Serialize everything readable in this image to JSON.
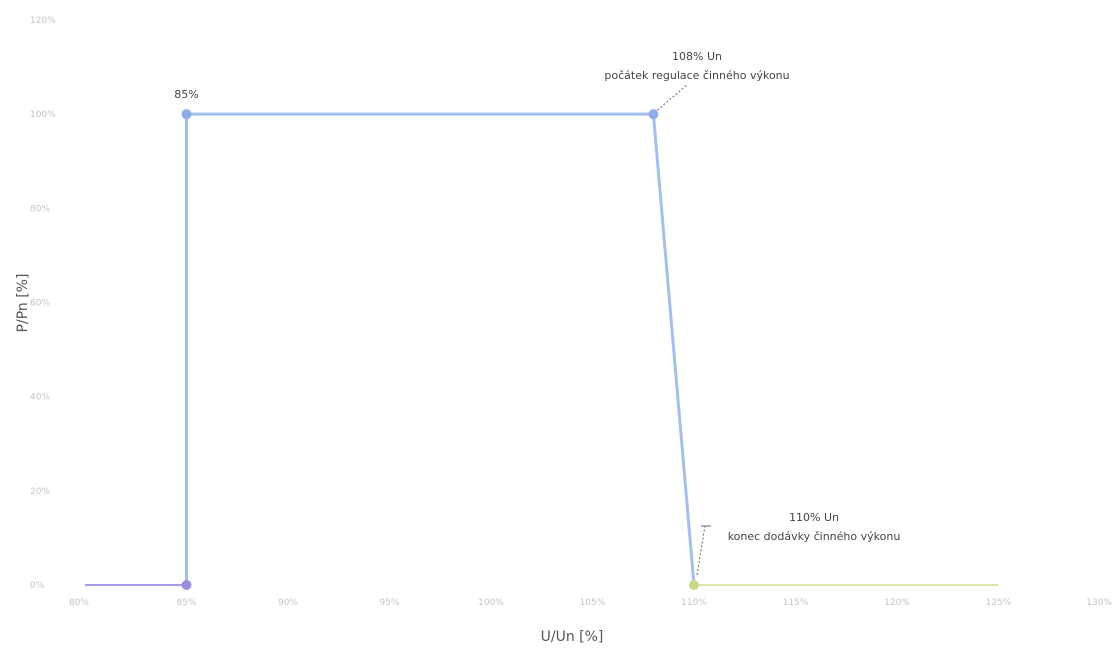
{
  "chart_data": {
    "type": "line",
    "title": "",
    "xlabel": "U/Un [%]",
    "ylabel": "P/Pn [%]",
    "xlim": [
      80,
      130
    ],
    "ylim": [
      0,
      120
    ],
    "x_ticks": [
      80,
      85,
      90,
      95,
      100,
      105,
      110,
      115,
      120,
      125,
      130
    ],
    "x_tick_labels": [
      "80%",
      "85%",
      "90%",
      "95%",
      "100%",
      "105%",
      "110%",
      "115%",
      "120%",
      "125%",
      "130%"
    ],
    "y_ticks": [
      0,
      20,
      40,
      60,
      80,
      100,
      120
    ],
    "y_tick_labels": [
      "0%",
      "20%",
      "40%",
      "60%",
      "80%",
      "100%",
      "120%"
    ],
    "grid": false,
    "series": [
      {
        "color": "#a49be3",
        "points": [
          [
            80,
            0
          ],
          [
            85,
            0
          ]
        ],
        "markers": [
          [
            85,
            0
          ]
        ],
        "marker_color": "#9a8ee0"
      },
      {
        "color": "#a3bff0",
        "points": [
          [
            85,
            0
          ],
          [
            85,
            100
          ],
          [
            108,
            100
          ],
          [
            110,
            0
          ]
        ],
        "markers": [
          [
            85,
            100
          ],
          [
            108,
            100
          ]
        ],
        "marker_color": "#8eaee8"
      },
      {
        "color": "#dbe6a8",
        "points": [
          [
            110,
            0
          ],
          [
            125,
            0
          ]
        ],
        "markers": [
          [
            110,
            0
          ]
        ],
        "marker_color": "#c9d98a"
      }
    ],
    "annotations": [
      {
        "text": "85%"
      },
      {
        "line1": "108% Un",
        "line2": "počátek regulace činného výkonu"
      },
      {
        "line1": "110% Un",
        "line2": "konec dodávky činného výkonu"
      }
    ]
  }
}
